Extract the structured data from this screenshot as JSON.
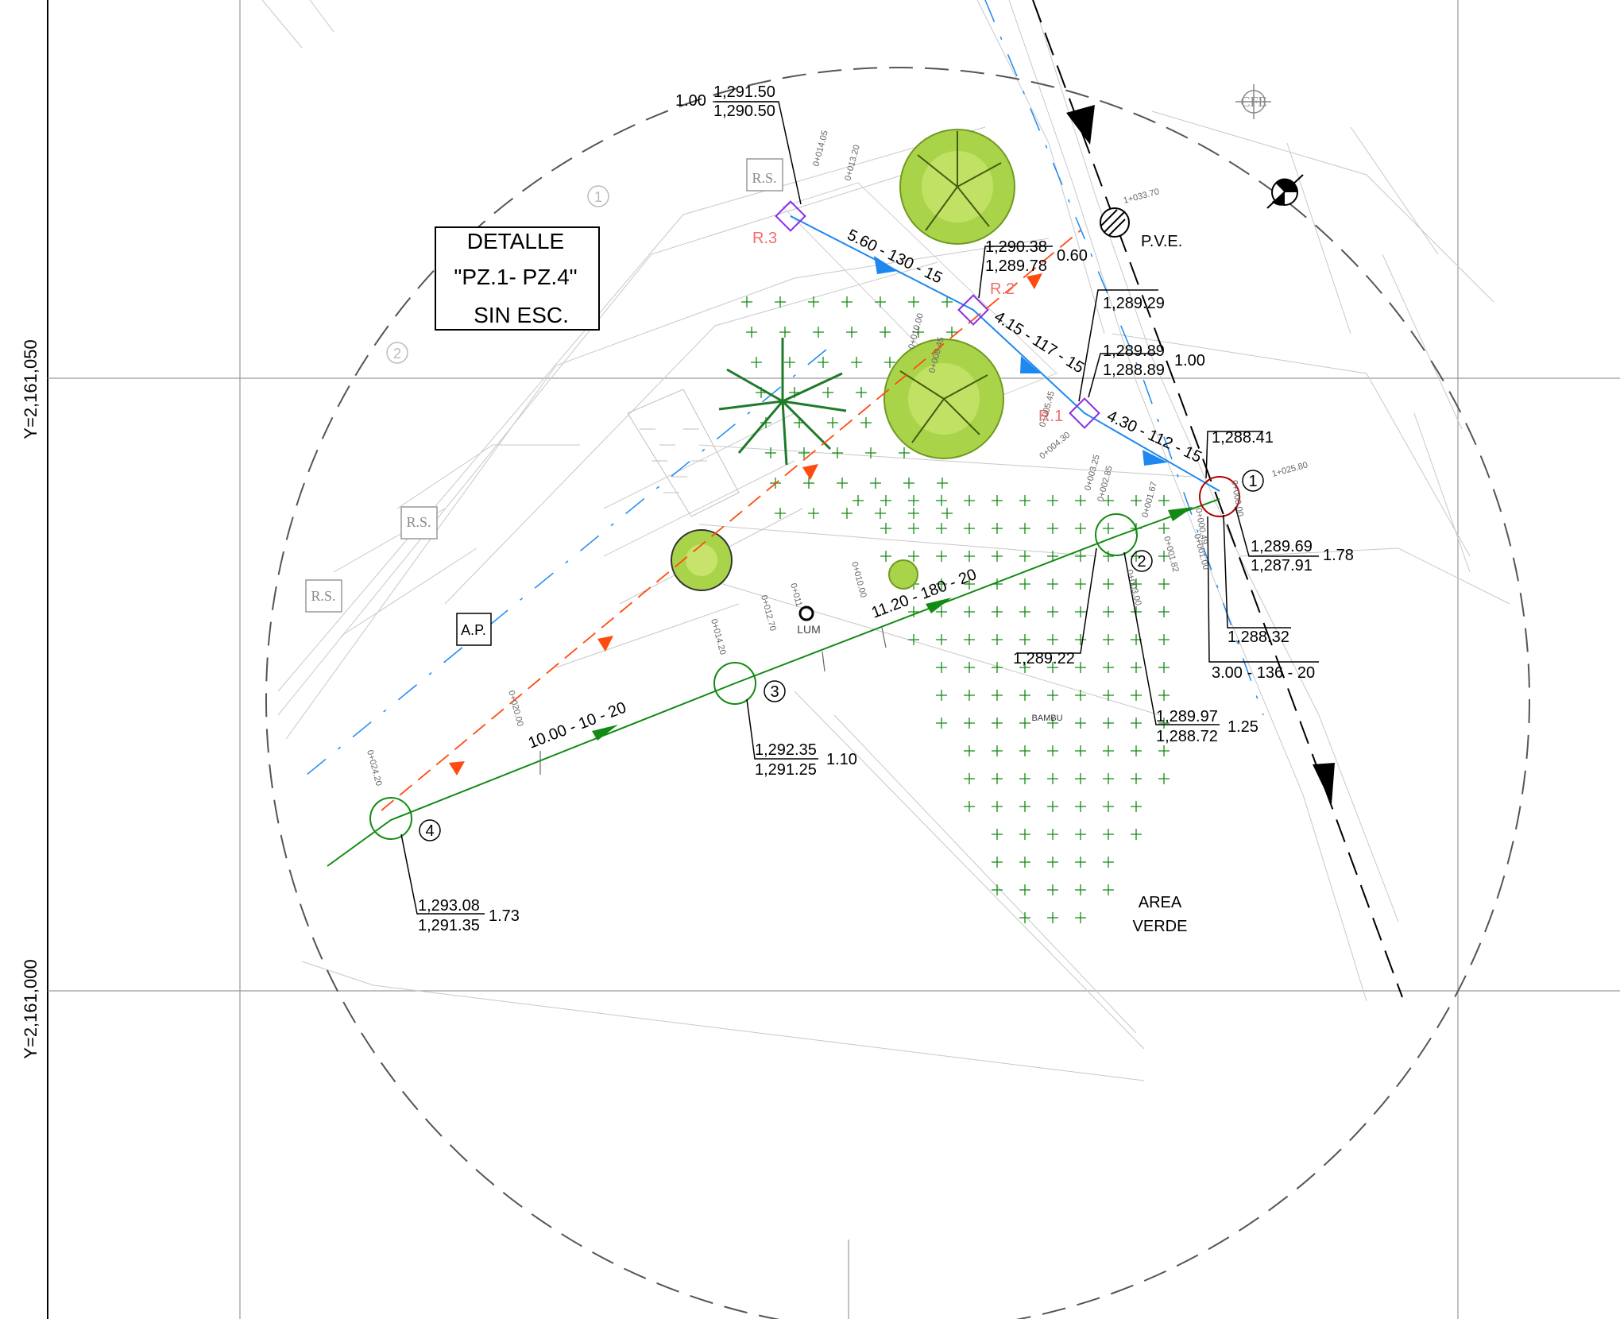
{
  "axis": {
    "y_upper": "Y=2,161,050",
    "y_lower": "Y=2,161,000"
  },
  "detail_box": {
    "line1": "DETALLE",
    "line2": "\"PZ.1- PZ.4\"",
    "line3": "SIN ESC."
  },
  "colors": {
    "storm_line": "#1e88f0",
    "sewer_line": "#138a13",
    "orange_line": "#ff4a10",
    "register": "#8a2be2",
    "well_1": "#b00000",
    "tree_green": "#9acd32"
  },
  "registers": {
    "r1": "R.1",
    "r2": "R.2",
    "r3": "R.3"
  },
  "wells": {
    "w1": "1",
    "w2": "2",
    "w3": "3",
    "w4": "4",
    "faint1": "1",
    "faint2": "2"
  },
  "segments": {
    "s_r3_r2": "5.60 - 130 - 15",
    "s_r2_r1": "4.15 - 117 - 15",
    "s_r1_p1": "4.30 - 112 - 15",
    "s_p2_p1": "3.00 - 136 - 20",
    "s_p3_p2": "11.20 - 180 - 20",
    "s_p4_p3": "10.00 - 10 - 20"
  },
  "elevations": {
    "r3_depth": "1.00",
    "r3_top": "1,291.50",
    "r3_bottom": "1,290.50",
    "r2_top": "1,290.38",
    "r2_bottom": "1,289.78",
    "r2_depth": "0.60",
    "r1_a": "1,289.29",
    "r1_top": "1,289.89",
    "r1_bottom": "1,288.89",
    "r1_depth": "1.00",
    "p1_a": "1,288.41",
    "p1_top": "1,289.69",
    "p1_bottom": "1,287.91",
    "p1_depth": "1.78",
    "p1_b": "1,288.32",
    "p2_a": "1,289.22",
    "p2_top": "1,289.97",
    "p2_bottom": "1,288.72",
    "p2_depth": "1.25",
    "p3_top": "1,292.35",
    "p3_bottom": "1,291.25",
    "p3_depth": "1.10",
    "p4_top": "1,293.08",
    "p4_bottom": "1,291.35",
    "p4_depth": "1.73"
  },
  "symbols": {
    "pve": "P.V.E.",
    "cfe": "CFE",
    "lum": "LUM",
    "ap": "A.P.",
    "rs": "R.S.",
    "bambu": "BAMBU",
    "area1": "AREA",
    "area2": "VERDE"
  },
  "stations": {
    "t1": "0+014.05",
    "t2": "0+013.20",
    "t3": "0+010.00",
    "t4": "0+008.45",
    "t5": "0+005.45",
    "t6": "0+004.30",
    "t7": "0+003.25",
    "t8": "0+002.85",
    "t9": "0+001.67",
    "t10": "0+000.00",
    "t11": "0+000.49",
    "t12": "0+001.00",
    "t13": "0+001.82",
    "t14": "0+003.00",
    "t15": "1+033.70",
    "t16": "1+025.80",
    "t17": "0+014.20",
    "t18": "0+012.70",
    "t19": "0+010.00",
    "t20": "0+011",
    "t21": "0+020.00",
    "t22": "0+024.20"
  }
}
